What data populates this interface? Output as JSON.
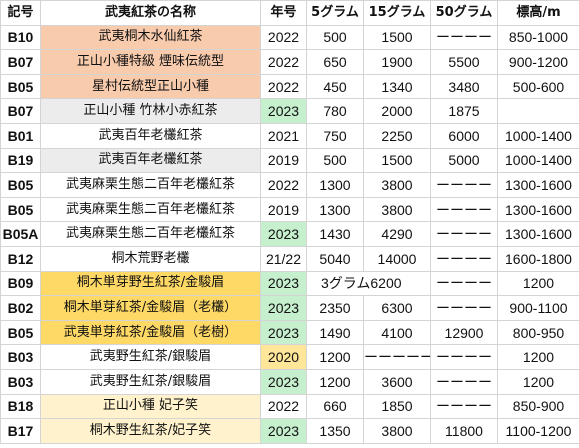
{
  "headers": [
    "記号",
    "武夷紅茶の名称",
    "年号",
    "5グラム",
    "15グラム",
    "50グラム",
    "標高/m"
  ],
  "rows": [
    {
      "code": "B10",
      "name": "武夷桐木水仙紅茶",
      "year": "2022",
      "g5": "500",
      "g15": "1500",
      "g50": "ーーーー",
      "altitude": "850-1000",
      "name_bg": "orange",
      "year_bg": ""
    },
    {
      "code": "B07",
      "name": "正山小種特級 煙味伝統型",
      "year": "2022",
      "g5": "650",
      "g15": "1900",
      "g50": "5500",
      "altitude": "900-1200",
      "name_bg": "orange",
      "year_bg": ""
    },
    {
      "code": "B05",
      "name": "星村伝統型正山小種",
      "year": "2022",
      "g5": "450",
      "g15": "1340",
      "g50": "3480",
      "altitude": "500-600",
      "name_bg": "orange",
      "year_bg": ""
    },
    {
      "code": "B07",
      "name": "正山小種 竹林小赤紅茶",
      "year": "2023",
      "g5": "780",
      "g15": "2000",
      "g50": "1875",
      "altitude": "",
      "name_bg": "gray",
      "year_bg": "green"
    },
    {
      "code": "B01",
      "name": "武夷百年老欉紅茶",
      "year": "2021",
      "g5": "750",
      "g15": "2250",
      "g50": "6000",
      "altitude": "1000-1400",
      "name_bg": "",
      "year_bg": ""
    },
    {
      "code": "B19",
      "name": "武夷百年老欉紅茶",
      "year": "2019",
      "g5": "500",
      "g15": "1500",
      "g50": "5000",
      "altitude": "1000-1400",
      "name_bg": "gray",
      "year_bg": ""
    },
    {
      "code": "B05",
      "name": "武夷麻栗生態二百年老欉紅茶",
      "year": "2022",
      "g5": "1300",
      "g15": "3800",
      "g50": "ーーーー",
      "altitude": "1300-1600",
      "name_bg": "",
      "year_bg": ""
    },
    {
      "code": "B05",
      "name": "武夷麻栗生態二百年老欉紅茶",
      "year": "2019",
      "g5": "1300",
      "g15": "3800",
      "g50": "ーーーー",
      "altitude": "1300-1600",
      "name_bg": "",
      "year_bg": ""
    },
    {
      "code": "B05A",
      "name": "武夷麻栗生態二百年老欉紅茶",
      "year": "2023",
      "g5": "1430",
      "g15": "4290",
      "g50": "ーーーー",
      "altitude": "1300-1600",
      "name_bg": "",
      "year_bg": "green"
    },
    {
      "code": "B12",
      "name": "桐木荒野老欉",
      "year": "21/22",
      "g5": "5040",
      "g15": "14000",
      "g50": "ーーーー",
      "altitude": "1600-1800",
      "name_bg": "",
      "year_bg": ""
    },
    {
      "code": "B09",
      "name": "桐木単芽野生紅茶/金駿眉",
      "year": "2023",
      "g5": "3グラム6200",
      "g15": "",
      "g50": "ーーーー",
      "altitude": "1200",
      "name_bg": "yellow",
      "year_bg": "green",
      "span": true
    },
    {
      "code": "B02",
      "name": "桐木単芽紅茶/金駿眉（老欉）",
      "year": "2023",
      "g5": "2350",
      "g15": "6300",
      "g50": "ーーーー",
      "altitude": "900-1100",
      "name_bg": "yellow",
      "year_bg": "green"
    },
    {
      "code": "B05",
      "name": "武夷単芽紅茶/金駿眉（老樹）",
      "year": "2023",
      "g5": "1490",
      "g15": "4100",
      "g50": "12900",
      "altitude": "800-950",
      "name_bg": "yellow",
      "year_bg": "green"
    },
    {
      "code": "B03",
      "name": "武夷野生紅茶/銀駿眉",
      "year": "2020",
      "g5": "1200",
      "g15": "ーーーーー",
      "g50": "ーーーー",
      "altitude": "1200",
      "name_bg": "",
      "year_bg": "amber"
    },
    {
      "code": "B03",
      "name": "武夷野生紅茶/銀駿眉",
      "year": "2023",
      "g5": "1200",
      "g15": "3600",
      "g50": "ーーーー",
      "altitude": "1200",
      "name_bg": "",
      "year_bg": "green"
    },
    {
      "code": "B18",
      "name": "正山小種 妃子笑",
      "year": "2022",
      "g5": "660",
      "g15": "1850",
      "g50": "ーーーー",
      "altitude": "850-900",
      "name_bg": "lightyellow",
      "year_bg": ""
    },
    {
      "code": "B17",
      "name": "桐木野生紅茶/妃子笑",
      "year": "2023",
      "g5": "1350",
      "g15": "3800",
      "g50": "11800",
      "altitude": "1100-1200",
      "name_bg": "lightyellow",
      "year_bg": "green"
    }
  ]
}
